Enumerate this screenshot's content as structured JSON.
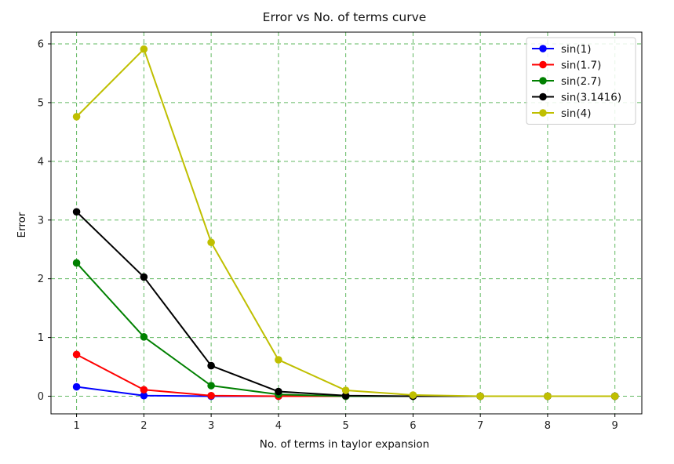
{
  "chart_data": {
    "type": "line",
    "title": "Error vs No. of terms curve",
    "xlabel": "No. of terms in taylor expansion",
    "ylabel": "Error",
    "x": [
      1,
      2,
      3,
      4,
      5,
      6,
      7,
      8,
      9
    ],
    "xlim": [
      0.62,
      9.4
    ],
    "ylim": [
      -0.3,
      6.2
    ],
    "xticks": [
      "1",
      "2",
      "3",
      "4",
      "5",
      "6",
      "7",
      "8",
      "9"
    ],
    "yticks": [
      "0",
      "1",
      "2",
      "3",
      "4",
      "5",
      "6"
    ],
    "grid": true,
    "grid_color": "#2ca02c",
    "legend_position": "top-right",
    "series": [
      {
        "name": "sin(1)",
        "color": "#0000ff",
        "values": [
          0.16,
          0.01,
          0.0,
          0.0,
          0.0,
          0.0,
          0.0,
          0.0,
          0.0
        ]
      },
      {
        "name": "sin(1.7)",
        "color": "#ff0000",
        "values": [
          0.71,
          0.11,
          0.01,
          0.0,
          0.0,
          0.0,
          0.0,
          0.0,
          0.0
        ]
      },
      {
        "name": "sin(2.7)",
        "color": "#008000",
        "values": [
          2.27,
          1.01,
          0.18,
          0.03,
          0.0,
          0.0,
          0.0,
          0.0,
          0.0
        ]
      },
      {
        "name": "sin(3.1416)",
        "color": "#000000",
        "values": [
          3.14,
          2.03,
          0.52,
          0.08,
          0.01,
          0.0,
          0.0,
          0.0,
          0.0
        ]
      },
      {
        "name": "sin(4)",
        "color": "#bfbf00",
        "values": [
          4.76,
          5.91,
          2.62,
          0.62,
          0.1,
          0.02,
          0.0,
          0.0,
          0.0
        ]
      }
    ]
  }
}
